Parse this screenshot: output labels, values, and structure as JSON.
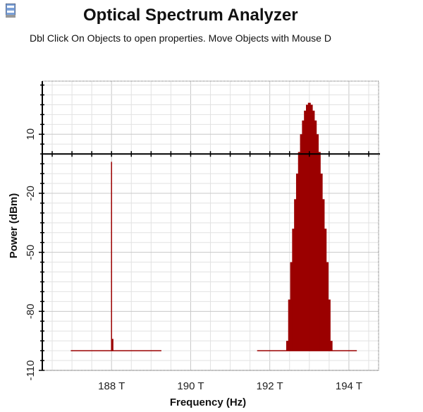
{
  "header": {
    "title": "Optical Spectrum Analyzer",
    "subtitle": "Dbl Click On Objects to open properties.  Move Objects with Mouse D",
    "icon": "window-app-icon"
  },
  "chart_data": {
    "type": "line",
    "title": "",
    "xlabel": "Frequency (Hz)",
    "ylabel": "Power (dBm)",
    "xlim": [
      186.25,
      194.75
    ],
    "ylim": [
      -110,
      37
    ],
    "x_ticks": [
      188,
      190,
      192,
      194
    ],
    "x_tick_labels": [
      "188 T",
      "190 T",
      "192 T",
      "194 T"
    ],
    "y_ticks": [
      10,
      -20,
      -50,
      -80,
      -110
    ],
    "y_tick_labels": [
      "10",
      "-20",
      "-50",
      "-80",
      "-110"
    ],
    "zero_line": 0,
    "grid": true,
    "color": "#9b0000",
    "series": [
      {
        "noise_floor": -100,
        "floor_range": [
          186.97,
          189.26
        ],
        "lines": [
          {
            "x": 188.0,
            "y": -4
          },
          {
            "x": 188.02,
            "y": -94
          }
        ]
      },
      {
        "noise_floor": -100,
        "floor_range": [
          191.68,
          194.2
        ],
        "lines": [
          {
            "x": 192.45,
            "y": -95
          },
          {
            "x": 192.5,
            "y": -74
          },
          {
            "x": 192.55,
            "y": -55
          },
          {
            "x": 192.6,
            "y": -38
          },
          {
            "x": 192.65,
            "y": -23
          },
          {
            "x": 192.7,
            "y": -10
          },
          {
            "x": 192.75,
            "y": 1
          },
          {
            "x": 192.8,
            "y": 10
          },
          {
            "x": 192.85,
            "y": 17
          },
          {
            "x": 192.9,
            "y": 22
          },
          {
            "x": 192.95,
            "y": 25
          },
          {
            "x": 193.0,
            "y": 26
          },
          {
            "x": 193.05,
            "y": 25
          },
          {
            "x": 193.1,
            "y": 22
          },
          {
            "x": 193.15,
            "y": 17
          },
          {
            "x": 193.2,
            "y": 10
          },
          {
            "x": 193.25,
            "y": 1
          },
          {
            "x": 193.3,
            "y": -10
          },
          {
            "x": 193.35,
            "y": -23
          },
          {
            "x": 193.4,
            "y": -38
          },
          {
            "x": 193.45,
            "y": -55
          },
          {
            "x": 193.5,
            "y": -74
          },
          {
            "x": 193.55,
            "y": -95
          }
        ]
      }
    ]
  }
}
